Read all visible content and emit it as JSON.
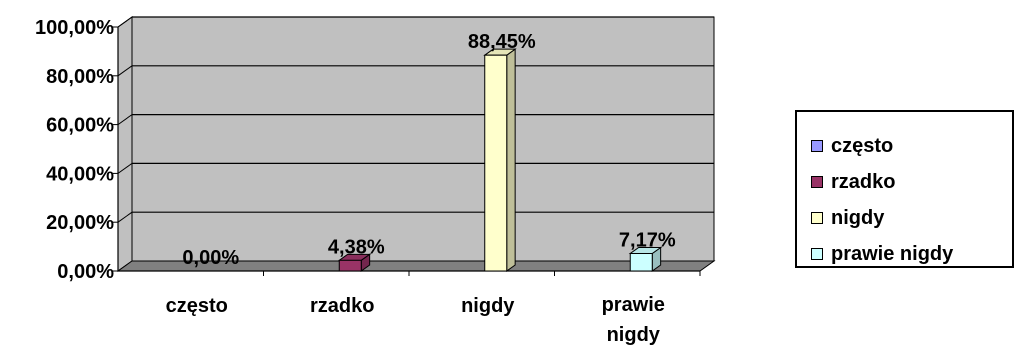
{
  "chart_data": {
    "type": "bar",
    "categories": [
      "często",
      "rzadko",
      "nigdy",
      "prawie nigdy"
    ],
    "values": [
      0.0,
      4.38,
      88.45,
      7.17
    ],
    "data_labels": [
      "0,00%",
      "4,38%",
      "88,45%",
      "7,17%"
    ],
    "series_colors": [
      "#9999ff",
      "#993366",
      "#ffffcc",
      "#ccffff"
    ],
    "y_ticks": [
      "0,00%",
      "20,00%",
      "40,00%",
      "60,00%",
      "80,00%",
      "100,00%"
    ],
    "ylim": [
      0,
      100
    ],
    "grid": true,
    "plot_background": "#c0c0c0",
    "floor_color": "#808080",
    "legend_position": "right",
    "legend": [
      "często",
      "rzadko",
      "nigdy",
      "prawie nigdy"
    ]
  }
}
